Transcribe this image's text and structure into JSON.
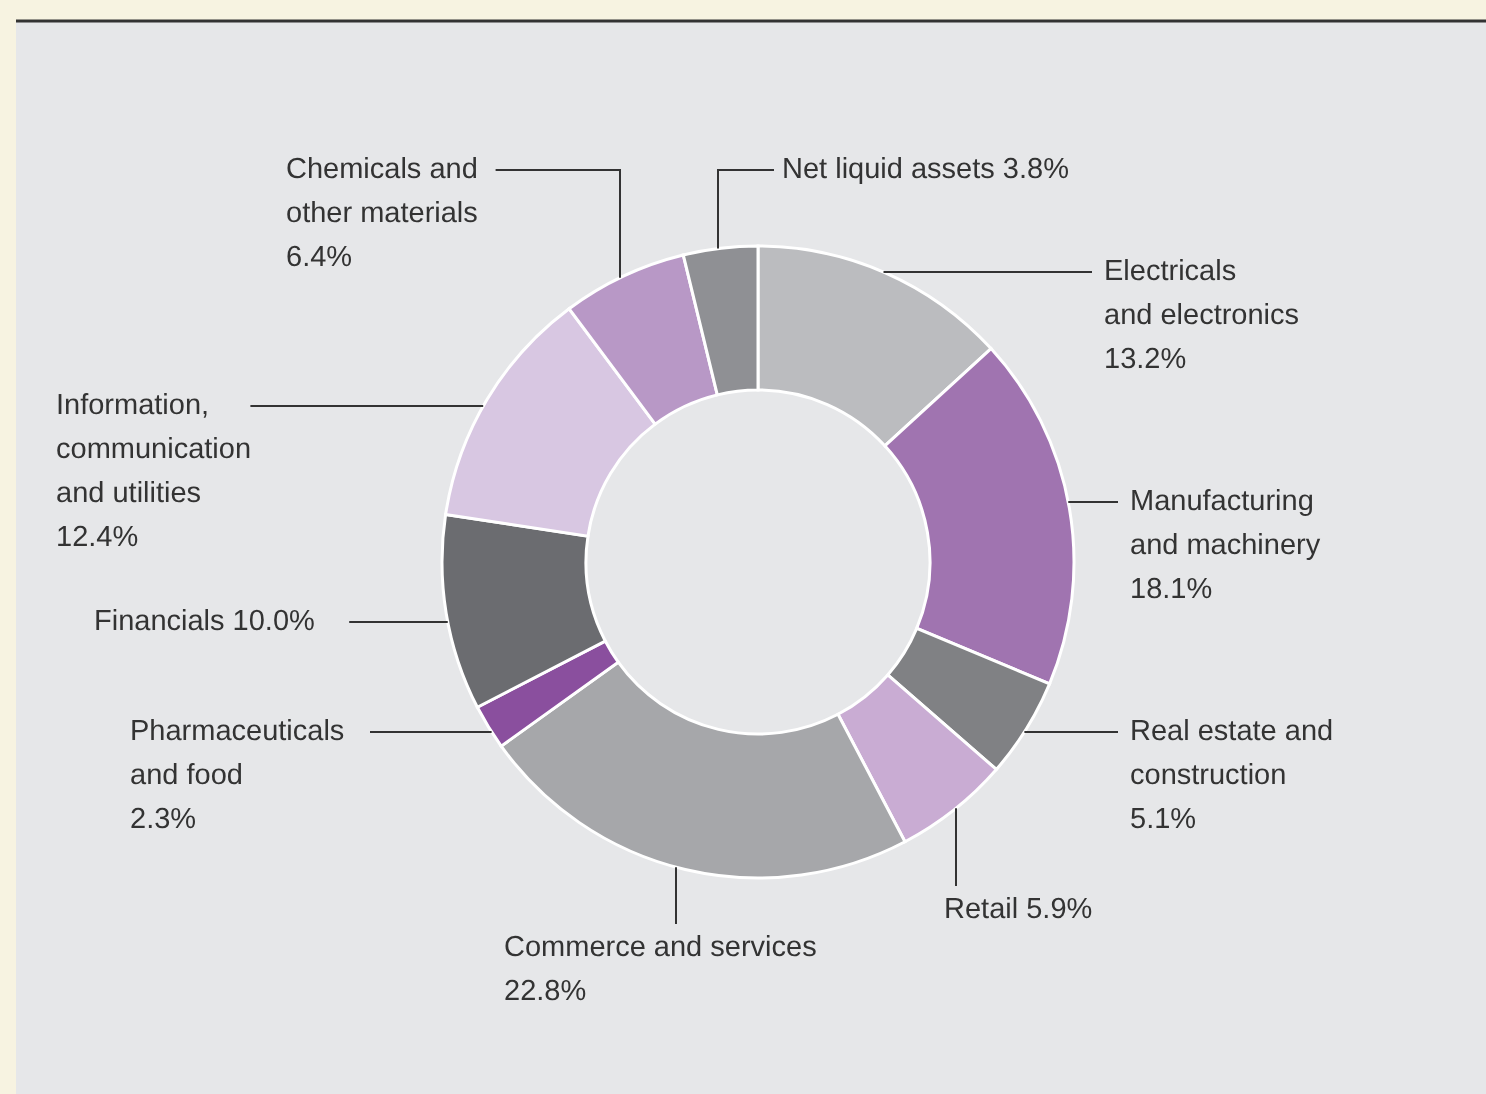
{
  "chart_data": {
    "type": "donut",
    "categories": [
      "Electricals and electronics",
      "Manufacturing and machinery",
      "Real estate and construction",
      "Retail",
      "Commerce and services",
      "Pharmaceuticals and food",
      "Financials",
      "Information, communication and utilities",
      "Chemicals and other materials",
      "Net liquid assets"
    ],
    "values": [
      13.2,
      18.1,
      5.1,
      5.9,
      22.8,
      2.3,
      10.0,
      12.4,
      6.4,
      3.8
    ],
    "value_labels": [
      "13.2%",
      "18.1%",
      "5.1%",
      "5.9%",
      "22.8%",
      "2.3%",
      "10.0%",
      "12.4%",
      "6.4%",
      "3.8%"
    ],
    "colors": [
      "#bbbcbf",
      "#a074b0",
      "#808184",
      "#c9acd3",
      "#a6a7aa",
      "#8a4f9e",
      "#6b6c70",
      "#d8c7e2",
      "#b898c6",
      "#8f9094"
    ]
  }
}
